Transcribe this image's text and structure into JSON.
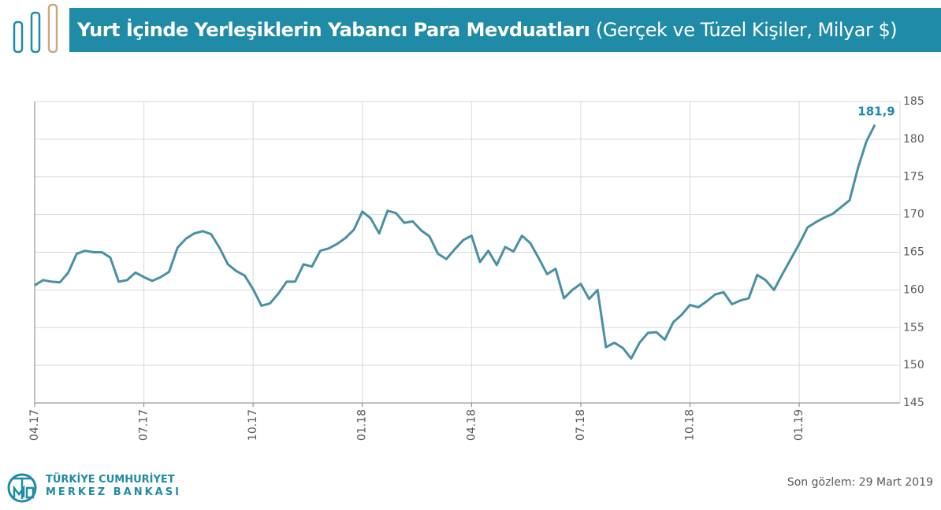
{
  "header": {
    "title": "Yurt İçinde Yerleşiklerin Yabancı Para Mevduatları",
    "subtitle": "(Gerçek ve Tüzel Kişiler, Milyar $)"
  },
  "logo": {
    "line1": "TÜRKİYE CUMHURİYET",
    "line2": "MERKEZ BANKASI"
  },
  "chart_data": {
    "type": "line",
    "color": "#4a90a4",
    "values": [
      160.6,
      161.3,
      161.1,
      161.0,
      162.3,
      164.8,
      165.2,
      165.0,
      165.0,
      164.3,
      161.1,
      161.3,
      162.3,
      161.7,
      161.2,
      161.7,
      162.4,
      165.6,
      166.8,
      167.5,
      167.8,
      167.4,
      165.6,
      163.4,
      162.5,
      161.9,
      160.1,
      157.9,
      158.2,
      159.5,
      161.1,
      161.1,
      163.4,
      163.1,
      165.2,
      165.5,
      166.1,
      166.9,
      168.0,
      170.4,
      169.5,
      167.5,
      170.5,
      170.2,
      168.9,
      169.1,
      167.9,
      167.1,
      164.8,
      164.1,
      165.4,
      166.6,
      167.2,
      163.7,
      165.2,
      163.3,
      165.7,
      165.1,
      167.2,
      166.2,
      164.2,
      162.1,
      162.8,
      158.9,
      160.0,
      160.8,
      158.8,
      160.0,
      152.4,
      153.0,
      152.3,
      150.9,
      153.0,
      154.3,
      154.4,
      153.4,
      155.7,
      156.7,
      158.0,
      157.7,
      158.5,
      159.4,
      159.7,
      158.1,
      158.6,
      158.9,
      162.0,
      161.3,
      160.0,
      162.1,
      164.1,
      166.1,
      168.3,
      169.0,
      169.6,
      170.1,
      171.0,
      171.9,
      176.2,
      179.7,
      181.9
    ],
    "annotations": [
      {
        "text": "181,9"
      }
    ],
    "xlim": [
      0,
      103
    ],
    "xticks": [
      {
        "value": 0,
        "label": "04.17"
      },
      {
        "value": 13,
        "label": "07.17"
      },
      {
        "value": 26,
        "label": "10.17"
      },
      {
        "value": 39,
        "label": "01.18"
      },
      {
        "value": 52,
        "label": "04.18"
      },
      {
        "value": 65,
        "label": "07.18"
      },
      {
        "value": 78,
        "label": "10.18"
      },
      {
        "value": 91,
        "label": "01.19"
      }
    ],
    "ylim": [
      145,
      185
    ],
    "yticks": [
      145,
      150,
      155,
      160,
      165,
      170,
      175,
      180,
      185
    ],
    "grid": true,
    "label_color": "#1f8ba7",
    "note": "Son gözlem: 29 Mart 2019"
  }
}
